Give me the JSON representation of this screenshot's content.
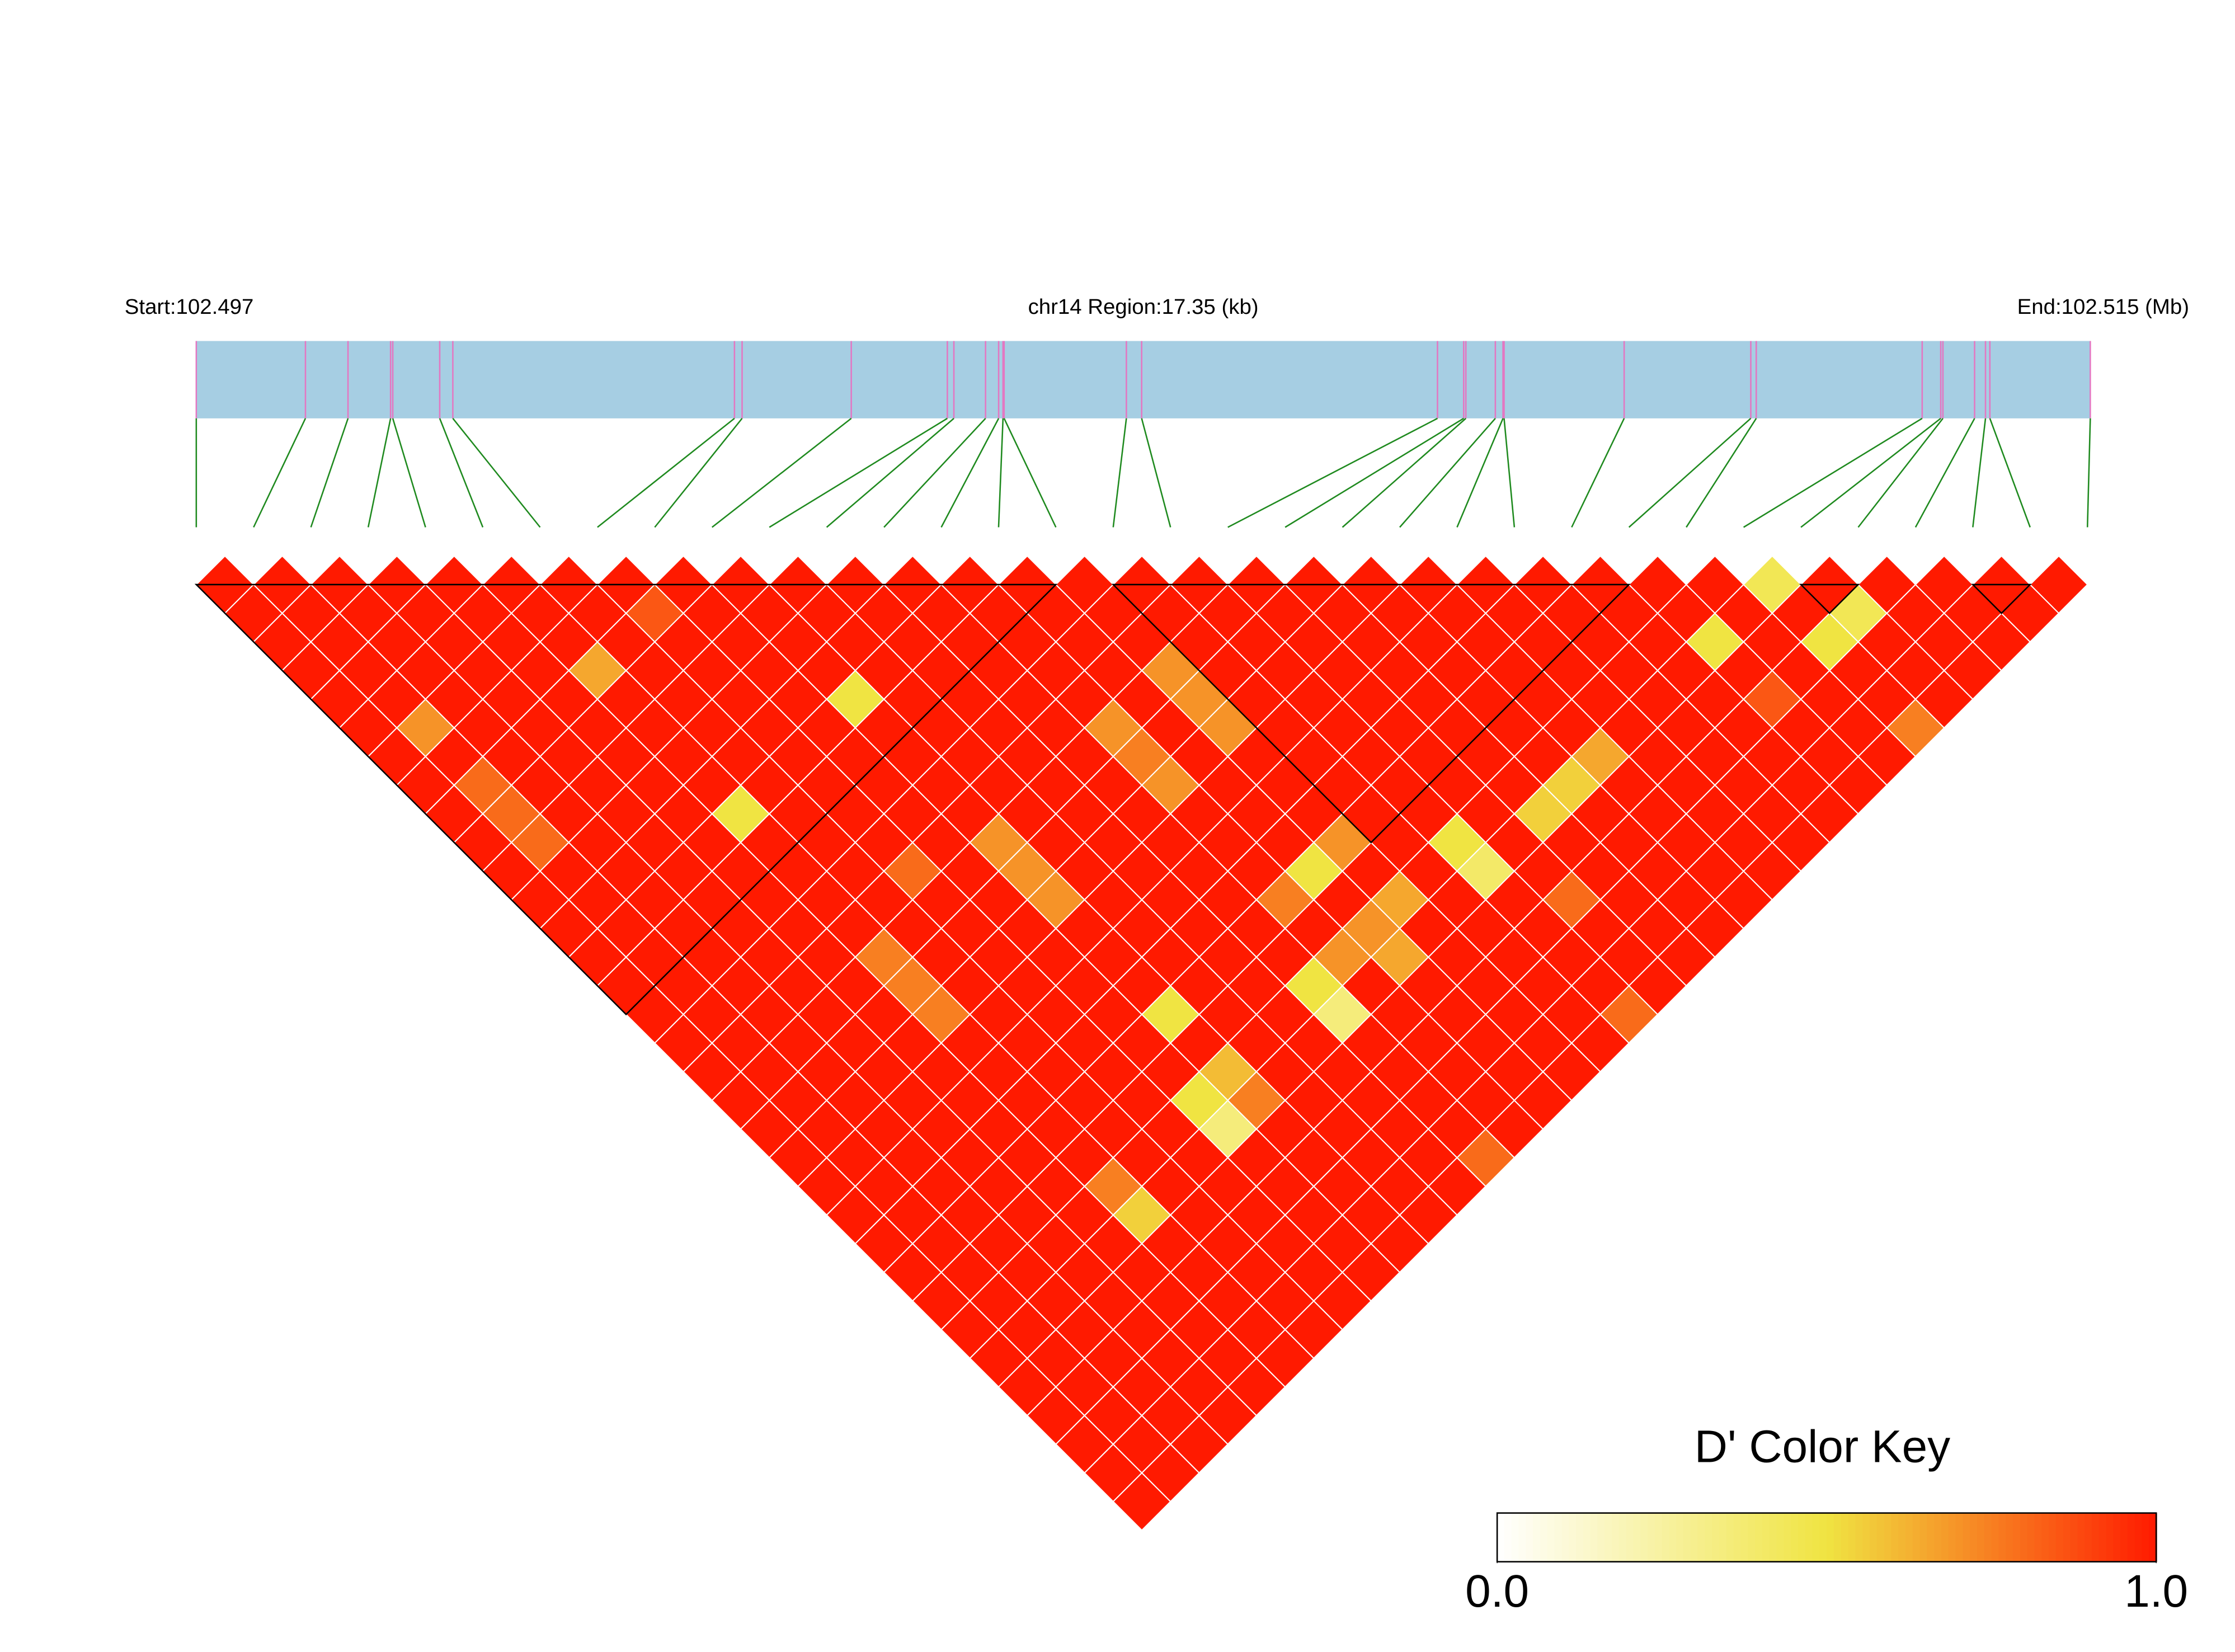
{
  "chart_data": {
    "type": "ld_heatmap",
    "start_label": "Start:102.497",
    "region_label": "chr14 Region:17.35 (kb)",
    "end_label": "End:102.515 (Mb)",
    "legend_title": "D' Color Key",
    "xlim": [
      0,
      17.35
    ],
    "snp_positions": [
      0,
      1.0,
      1.39,
      1.78,
      1.8,
      2.23,
      2.35,
      4.93,
      5.0,
      6.0,
      6.88,
      6.94,
      7.23,
      7.35,
      7.39,
      7.4,
      8.52,
      8.66,
      11.37,
      11.61,
      11.63,
      11.9,
      11.97,
      11.98,
      13.08,
      14.24,
      14.29,
      15.81,
      15.98,
      16.0,
      16.29,
      16.39,
      16.43,
      17.35
    ],
    "dprime": [
      [
        1,
        1,
        1,
        1,
        1,
        1,
        1,
        1,
        1,
        1,
        1,
        1,
        1,
        1,
        1,
        1,
        1,
        1,
        1,
        1,
        1,
        1,
        1,
        1,
        1,
        1,
        1,
        1,
        1,
        1,
        1,
        1,
        1
      ],
      [
        1,
        1,
        1,
        1,
        1,
        0.7,
        1,
        0.8,
        0.8,
        0.8,
        1,
        1,
        1,
        1,
        1,
        1,
        1,
        1,
        1,
        1,
        1,
        1,
        1,
        1,
        1,
        1,
        1,
        1,
        1,
        1,
        1,
        1
      ],
      [
        1,
        1,
        1,
        1,
        1,
        1,
        1,
        1,
        1,
        1,
        1,
        1,
        1,
        1,
        1,
        1,
        1,
        1,
        1,
        1,
        1,
        1,
        1,
        1,
        1,
        1,
        1,
        1,
        1,
        1,
        1
      ],
      [
        1,
        1,
        1,
        1,
        1,
        1,
        1,
        1,
        1,
        1,
        1,
        1,
        1,
        1,
        1,
        1,
        1,
        1,
        1,
        1,
        1,
        1,
        1,
        1,
        1,
        1,
        1,
        1,
        1,
        1
      ],
      [
        1,
        1,
        1,
        1,
        1,
        1,
        1,
        1,
        1,
        1,
        1,
        1,
        1,
        1,
        1,
        1,
        1,
        1,
        1,
        1,
        1,
        1,
        1,
        1,
        1,
        1,
        1,
        1,
        1
      ],
      [
        1,
        1,
        1,
        0.65,
        1,
        1,
        1,
        1,
        0.5,
        1,
        1,
        1,
        1,
        0.75,
        0.75,
        0.75,
        1,
        1,
        1,
        1,
        1,
        0.75,
        0.55,
        1,
        1,
        1,
        1,
        1
      ],
      [
        1,
        1,
        1,
        1,
        1,
        1,
        1,
        1,
        1,
        1,
        1,
        1,
        1,
        1,
        1,
        1,
        1,
        1,
        1,
        1,
        1,
        1,
        1,
        1,
        1,
        1,
        1
      ],
      [
        1,
        0.85,
        1,
        1,
        1,
        1,
        1,
        1,
        1,
        1,
        0.8,
        1,
        1,
        1,
        1,
        1,
        1,
        1,
        1,
        1,
        1,
        1,
        1,
        1,
        1,
        1
      ],
      [
        1,
        1,
        1,
        1,
        1,
        1,
        1,
        1,
        1,
        1,
        1,
        1,
        1,
        1,
        1,
        1,
        1,
        1,
        0.5,
        0.35,
        1,
        1,
        1,
        1,
        1
      ],
      [
        1,
        1,
        1,
        1,
        0.5,
        1,
        1,
        1,
        1,
        0.7,
        0.7,
        0.7,
        1,
        1,
        1,
        0.5,
        1,
        0.6,
        0.75,
        1,
        1,
        1,
        1,
        1
      ],
      [
        1,
        1,
        1,
        1,
        1,
        1,
        1,
        1,
        1,
        1,
        1,
        1,
        1,
        1,
        1,
        1,
        1,
        1,
        1,
        1,
        1,
        1,
        1
      ],
      [
        1,
        1,
        1,
        1,
        1,
        1,
        1,
        1,
        1,
        1,
        1,
        1,
        1,
        1,
        1,
        1,
        1,
        1,
        1,
        1,
        1,
        1
      ],
      [
        1,
        1,
        1,
        1,
        1,
        1,
        1,
        1,
        1,
        1,
        1,
        1,
        1,
        1,
        0.5,
        0.35,
        1,
        1,
        1,
        1,
        0.8
      ],
      [
        1,
        1,
        1,
        1,
        1,
        0.7,
        0.75,
        0.7,
        1,
        1,
        1,
        0.75,
        1,
        0.7,
        1,
        1,
        1,
        1,
        1,
        1
      ],
      [
        1,
        1,
        1,
        1,
        1,
        1,
        1,
        1,
        1,
        1,
        0.5,
        1,
        0.7,
        0.65,
        1,
        1,
        1,
        1,
        1
      ],
      [
        1,
        1,
        1,
        0.7,
        0.7,
        0.7,
        1,
        1,
        1,
        0.7,
        1,
        0.65,
        1,
        1,
        1,
        1,
        1,
        1
      ],
      [
        1,
        1,
        1,
        1,
        1,
        1,
        1,
        1,
        1,
        1,
        1,
        1,
        1,
        1,
        1,
        1,
        1
      ],
      [
        1,
        1,
        1,
        1,
        1,
        1,
        1,
        1,
        1,
        0.5,
        0.4,
        1,
        1,
        1,
        1,
        0.8
      ],
      [
        1,
        1,
        1,
        1,
        1,
        1,
        1,
        1,
        1,
        1,
        1,
        0.8,
        1,
        1,
        1
      ],
      [
        1,
        1,
        1,
        1,
        1,
        1,
        1,
        1,
        0.55,
        1,
        1,
        1,
        1,
        1
      ],
      [
        1,
        1,
        1,
        1,
        1,
        1,
        1,
        0.55,
        1,
        1,
        1,
        1,
        1
      ],
      [
        1,
        1,
        1,
        1,
        1,
        1,
        0.65,
        1,
        1,
        1,
        1,
        1
      ],
      [
        1,
        1,
        1,
        1,
        1,
        1,
        1,
        1,
        1,
        1,
        1
      ],
      [
        1,
        1,
        1,
        1,
        1,
        1,
        1,
        1,
        1,
        1
      ],
      [
        1,
        1,
        1,
        1,
        1,
        1,
        1,
        1,
        1
      ],
      [
        1,
        1,
        0.5,
        1,
        0.85,
        1,
        1,
        1
      ],
      [
        1,
        1,
        1,
        1,
        1,
        1,
        1
      ],
      [
        0.45,
        1,
        0.5,
        1,
        1,
        0.75
      ],
      [
        1,
        0.45,
        1,
        1,
        1
      ],
      [
        1,
        1,
        1,
        1
      ],
      [
        1,
        1,
        1
      ],
      [
        1,
        1
      ],
      [
        1
      ]
    ],
    "blocks": [
      [
        0,
        15
      ],
      [
        16,
        25
      ],
      [
        28,
        29
      ],
      [
        31,
        32
      ]
    ],
    "colormap": [
      "#ffffff",
      "#f0e442",
      "#ff1a00"
    ],
    "bar_color": "#a6cee3",
    "snp_line_color": "#e377c2",
    "connector_color": "#1f8a1f",
    "colorbar_lim": [
      0,
      1
    ],
    "colorbar_ticks": [
      {
        "value": 0,
        "label": "0.0"
      },
      {
        "value": 1,
        "label": "1.0"
      }
    ]
  }
}
